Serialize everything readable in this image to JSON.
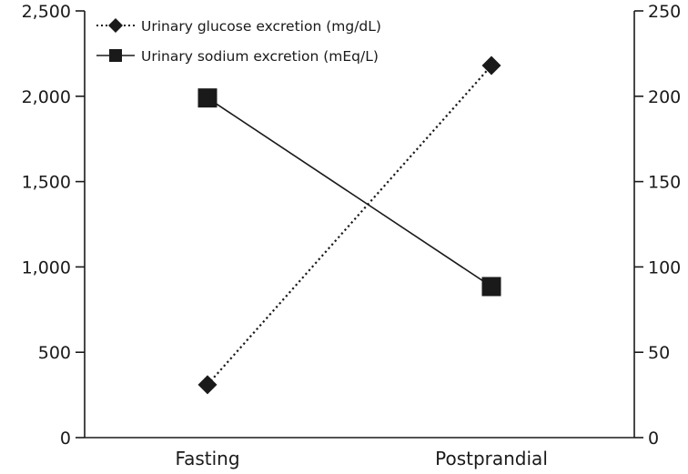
{
  "chart_data": {
    "type": "line",
    "title": "",
    "xlabel": "",
    "ylabel_left": "",
    "ylabel_right": "",
    "categories": [
      "Fasting",
      "Postprandial"
    ],
    "y_left": {
      "range": [
        0,
        2500
      ],
      "ticks": [
        0,
        500,
        1000,
        1500,
        2000,
        2500
      ],
      "tick_labels": [
        "0",
        "500",
        "1,000",
        "1,500",
        "2,000",
        "2,500"
      ]
    },
    "y_right": {
      "range": [
        0,
        250
      ],
      "ticks": [
        0,
        50,
        100,
        150,
        200,
        250
      ],
      "tick_labels": [
        "0",
        "50",
        "100",
        "150",
        "200",
        "250"
      ]
    },
    "series": [
      {
        "name": "Urinary glucose excretion (mg/dL)",
        "axis": "left",
        "values": [
          310,
          2180
        ],
        "marker": "diamond",
        "line_style": "dotted",
        "color": "#1a1a1a"
      },
      {
        "name": "Urinary sodium excretion (mEq/L)",
        "axis": "right",
        "values": [
          199,
          88.5
        ],
        "marker": "square",
        "line_style": "solid",
        "color": "#1a1a1a"
      }
    ],
    "legend_position": "top-left",
    "grid": false
  }
}
